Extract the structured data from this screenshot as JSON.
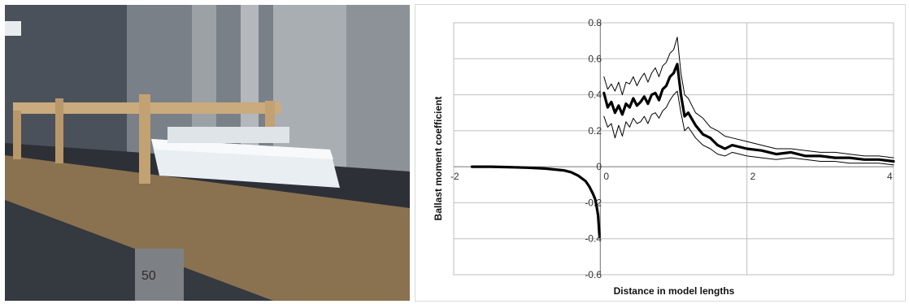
{
  "photo": {
    "icon": "towing-tank-model-photo",
    "caption_number": "50"
  },
  "chart_data": {
    "type": "line",
    "title": "",
    "xlabel": "Distance in model lengths",
    "ylabel": "Ballast moment coefficient",
    "xlim": [
      -2,
      4
    ],
    "ylim": [
      -0.6,
      0.8
    ],
    "xticks": [
      -2,
      0,
      2,
      4
    ],
    "yticks": [
      -0.6,
      -0.4,
      -0.2,
      0,
      0.2,
      0.4,
      0.6,
      0.8
    ],
    "xtick_labels": [
      "-2",
      "0",
      "2",
      "4"
    ],
    "ytick_labels": [
      "-0.6",
      "-0.4",
      "-0.2",
      "0",
      "0.2",
      "0.4",
      "0.6",
      "0.8"
    ],
    "grid": true,
    "legend": "none",
    "series": [
      {
        "role": "mean-approach",
        "style": "thick",
        "x": [
          -1.75,
          -1.5,
          -1.25,
          -1.0,
          -0.75,
          -0.5,
          -0.4,
          -0.3,
          -0.2,
          -0.15,
          -0.1,
          -0.07,
          -0.05,
          -0.03,
          -0.02,
          -0.01
        ],
        "y": [
          0.0,
          0.0,
          -0.002,
          -0.005,
          -0.01,
          -0.02,
          -0.03,
          -0.05,
          -0.08,
          -0.11,
          -0.15,
          -0.18,
          -0.22,
          -0.27,
          -0.33,
          -0.39
        ]
      },
      {
        "role": "mean-departure",
        "style": "thick",
        "x": [
          0.05,
          0.1,
          0.15,
          0.2,
          0.25,
          0.3,
          0.35,
          0.4,
          0.45,
          0.5,
          0.55,
          0.6,
          0.65,
          0.7,
          0.75,
          0.8,
          0.85,
          0.9,
          0.95,
          1.0,
          1.05,
          1.1,
          1.15,
          1.2,
          1.3,
          1.4,
          1.5,
          1.6,
          1.7,
          1.8,
          2.0,
          2.2,
          2.4,
          2.6,
          2.8,
          3.0,
          3.2,
          3.4,
          3.6,
          3.8,
          4.0
        ],
        "y": [
          0.41,
          0.33,
          0.36,
          0.3,
          0.34,
          0.29,
          0.35,
          0.33,
          0.38,
          0.34,
          0.36,
          0.39,
          0.35,
          0.4,
          0.41,
          0.37,
          0.43,
          0.45,
          0.5,
          0.52,
          0.57,
          0.4,
          0.28,
          0.3,
          0.23,
          0.18,
          0.16,
          0.12,
          0.1,
          0.12,
          0.1,
          0.09,
          0.07,
          0.08,
          0.06,
          0.06,
          0.05,
          0.05,
          0.04,
          0.04,
          0.03
        ]
      },
      {
        "role": "upper-bound",
        "style": "thin",
        "x": [
          0.05,
          0.1,
          0.15,
          0.2,
          0.25,
          0.3,
          0.35,
          0.4,
          0.45,
          0.5,
          0.55,
          0.6,
          0.65,
          0.7,
          0.75,
          0.8,
          0.85,
          0.9,
          0.95,
          1.0,
          1.05,
          1.1,
          1.15,
          1.2,
          1.3,
          1.4,
          1.5,
          1.6,
          1.7,
          1.8,
          2.0,
          2.2,
          2.4,
          2.6,
          2.8,
          3.0,
          3.2,
          3.4,
          3.6,
          3.8,
          4.0
        ],
        "y": [
          0.5,
          0.43,
          0.46,
          0.42,
          0.47,
          0.4,
          0.47,
          0.46,
          0.5,
          0.45,
          0.49,
          0.52,
          0.47,
          0.52,
          0.55,
          0.5,
          0.56,
          0.58,
          0.63,
          0.65,
          0.72,
          0.52,
          0.4,
          0.38,
          0.3,
          0.27,
          0.22,
          0.2,
          0.17,
          0.16,
          0.14,
          0.12,
          0.1,
          0.1,
          0.09,
          0.08,
          0.08,
          0.07,
          0.06,
          0.06,
          0.05
        ]
      },
      {
        "role": "lower-bound",
        "style": "thin",
        "x": [
          0.05,
          0.1,
          0.15,
          0.2,
          0.25,
          0.3,
          0.35,
          0.4,
          0.45,
          0.5,
          0.55,
          0.6,
          0.65,
          0.7,
          0.75,
          0.8,
          0.85,
          0.9,
          0.95,
          1.0,
          1.05,
          1.1,
          1.15,
          1.2,
          1.3,
          1.4,
          1.5,
          1.6,
          1.7,
          1.8,
          2.0,
          2.2,
          2.4,
          2.6,
          2.8,
          3.0,
          3.2,
          3.4,
          3.6,
          3.8,
          4.0
        ],
        "y": [
          0.28,
          0.22,
          0.24,
          0.16,
          0.23,
          0.17,
          0.25,
          0.22,
          0.27,
          0.24,
          0.25,
          0.28,
          0.24,
          0.29,
          0.3,
          0.27,
          0.31,
          0.33,
          0.37,
          0.4,
          0.42,
          0.3,
          0.2,
          0.22,
          0.16,
          0.12,
          0.1,
          0.07,
          0.06,
          0.08,
          0.06,
          0.05,
          0.04,
          0.05,
          0.04,
          0.03,
          0.03,
          0.02,
          0.02,
          0.02,
          0.01
        ]
      }
    ]
  }
}
